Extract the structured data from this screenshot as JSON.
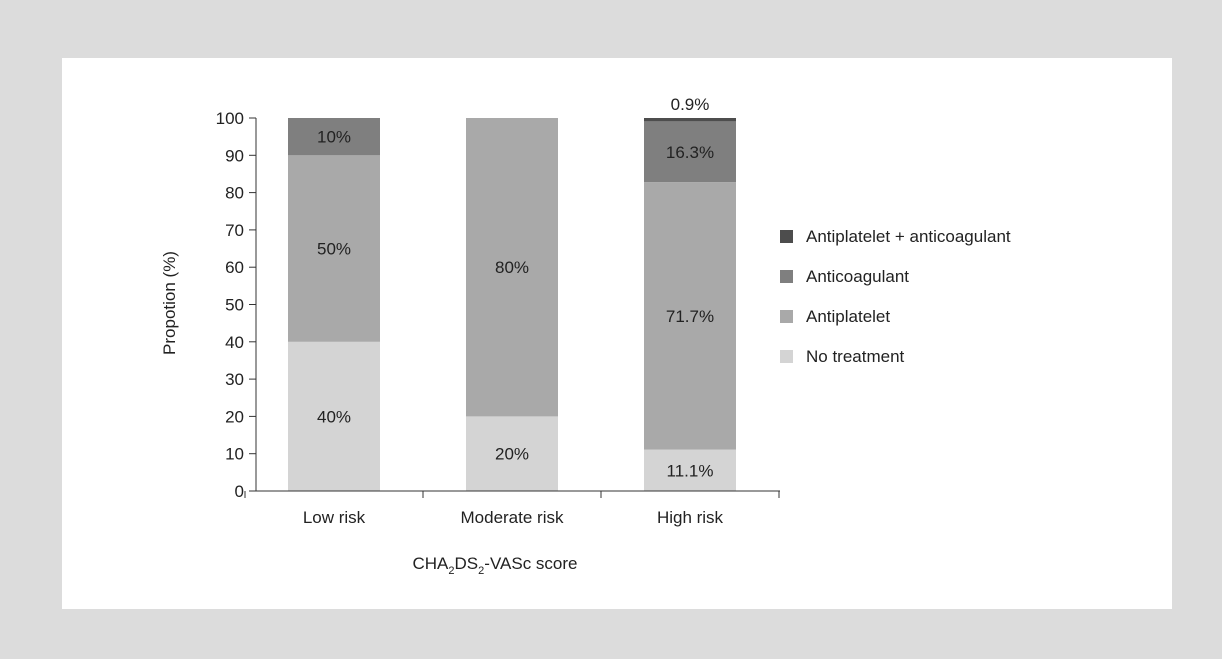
{
  "chart_data": {
    "type": "bar",
    "stacked": true,
    "categories": [
      "Low risk",
      "Moderate risk",
      "High risk"
    ],
    "series": [
      {
        "name": "No treatment",
        "values": [
          40,
          20,
          11.1
        ],
        "labels": [
          "40%",
          "20%",
          "11.1%"
        ],
        "color": "#d4d4d4"
      },
      {
        "name": "Antiplatelet",
        "values": [
          50,
          80,
          71.7
        ],
        "labels": [
          "50%",
          "80%",
          "71.7%"
        ],
        "color": "#a9a9a9"
      },
      {
        "name": "Anticoagulant",
        "values": [
          10,
          0,
          16.3
        ],
        "labels": [
          "10%",
          "",
          "16.3%"
        ],
        "color": "#7f7f7f"
      },
      {
        "name": "Antiplatelet + anticoagulant",
        "values": [
          0,
          0,
          0.9
        ],
        "labels": [
          "",
          "",
          "0.9%"
        ],
        "color": "#4d4d4d"
      }
    ],
    "ylabel": "Propotion (%)",
    "xlabel_parts": [
      {
        "text": "CHA",
        "sub": false
      },
      {
        "text": "2",
        "sub": true
      },
      {
        "text": "DS",
        "sub": false
      },
      {
        "text": "2",
        "sub": true
      },
      {
        "text": "-VASc score",
        "sub": false
      }
    ],
    "ylim": [
      0,
      100
    ],
    "yticks": [
      0,
      10,
      20,
      30,
      40,
      50,
      60,
      70,
      80,
      90,
      100
    ],
    "legend_position": "right",
    "grid": false
  }
}
